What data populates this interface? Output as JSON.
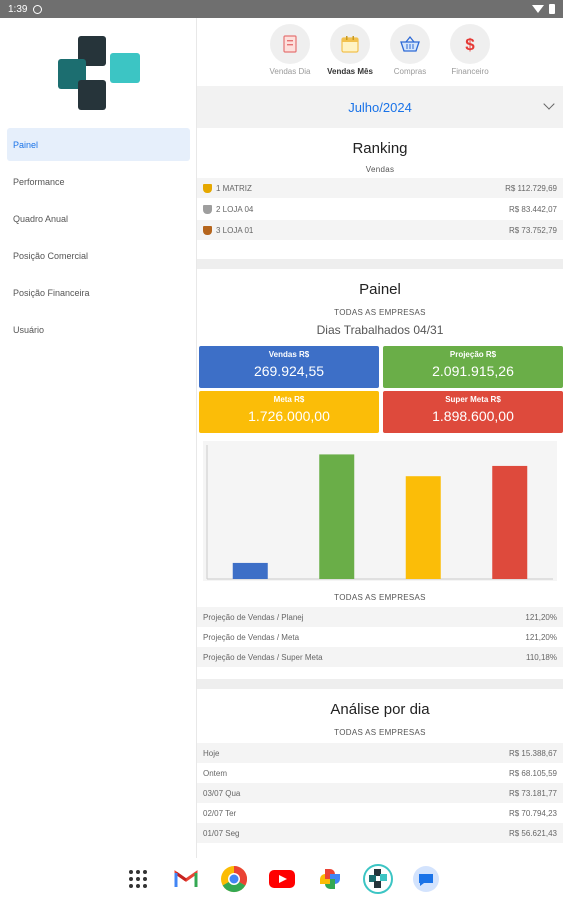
{
  "status": {
    "time": "1:39"
  },
  "sidebar": {
    "items": [
      {
        "label": "Painel",
        "active": true
      },
      {
        "label": "Performance",
        "active": false
      },
      {
        "label": "Quadro Anual",
        "active": false
      },
      {
        "label": "Posição Comercial",
        "active": false
      },
      {
        "label": "Posição Financeira",
        "active": false
      },
      {
        "label": "Usuário",
        "active": false
      }
    ]
  },
  "topnav": {
    "items": [
      {
        "label": "Vendas Dia",
        "icon": "document-icon",
        "active": false
      },
      {
        "label": "Vendas Mês",
        "icon": "calendar-icon",
        "active": true
      },
      {
        "label": "Compras",
        "icon": "basket-icon",
        "active": false
      },
      {
        "label": "Financeiro",
        "icon": "dollar-icon",
        "active": false
      }
    ]
  },
  "month": {
    "value": "Julho/2024"
  },
  "ranking": {
    "title": "Ranking",
    "subtitle": "Vendas",
    "rows": [
      {
        "position": "1 MATRIZ",
        "value": "R$ 112.729,69",
        "trophy": "#e6a800"
      },
      {
        "position": "2 LOJA 04",
        "value": "R$ 83.442,07",
        "trophy": "#9e9e9e"
      },
      {
        "position": "3 LOJA 01",
        "value": "R$ 73.752,79",
        "trophy": "#b5651d"
      }
    ]
  },
  "painel": {
    "title": "Painel",
    "company": "TODAS AS EMPRESAS",
    "days": "Dias Trabalhados 04/31",
    "kpis": [
      {
        "label": "Vendas R$",
        "value": "269.924,55",
        "color": "#3d6fc7"
      },
      {
        "label": "Projeção R$",
        "value": "2.091.915,26",
        "color": "#6aae48"
      },
      {
        "label": "Meta R$",
        "value": "1.726.000,00",
        "color": "#fbbd08"
      },
      {
        "label": "Super Meta R$",
        "value": "1.898.600,00",
        "color": "#de4a3c"
      }
    ],
    "chart_company": "TODAS AS EMPRESAS",
    "stats": [
      {
        "label": "Projeção de Vendas / Planej",
        "value": "121,20%"
      },
      {
        "label": "Projeção de Vendas / Meta",
        "value": "121,20%"
      },
      {
        "label": "Projeção de Vendas / Super Meta",
        "value": "110,18%"
      }
    ]
  },
  "chart_data": {
    "type": "bar",
    "categories": [
      "Vendas",
      "Projeção",
      "Meta",
      "Super Meta"
    ],
    "values": [
      269924.55,
      2091915.26,
      1726000.0,
      1898600.0
    ],
    "colors": [
      "#3d6fc7",
      "#6aae48",
      "#fbbd08",
      "#de4a3c"
    ],
    "title": "",
    "xlabel": "",
    "ylabel": "",
    "ylim": [
      0,
      2250000
    ],
    "grid": false
  },
  "analise": {
    "title": "Análise por dia",
    "company": "TODAS AS EMPRESAS",
    "rows": [
      {
        "label": "Hoje",
        "value": "R$ 15.388,67"
      },
      {
        "label": "Ontem",
        "value": "R$ 68.105,59"
      },
      {
        "label": "03/07  Qua",
        "value": "R$ 73.181,77"
      },
      {
        "label": "02/07  Ter",
        "value": "R$ 70.794,23"
      },
      {
        "label": "01/07  Seg",
        "value": "R$ 56.621,43"
      }
    ]
  },
  "dock": {
    "icons": [
      "apps-icon",
      "gmail-icon",
      "chrome-icon",
      "youtube-icon",
      "photos-icon",
      "app-logo-icon",
      "messages-icon"
    ]
  }
}
